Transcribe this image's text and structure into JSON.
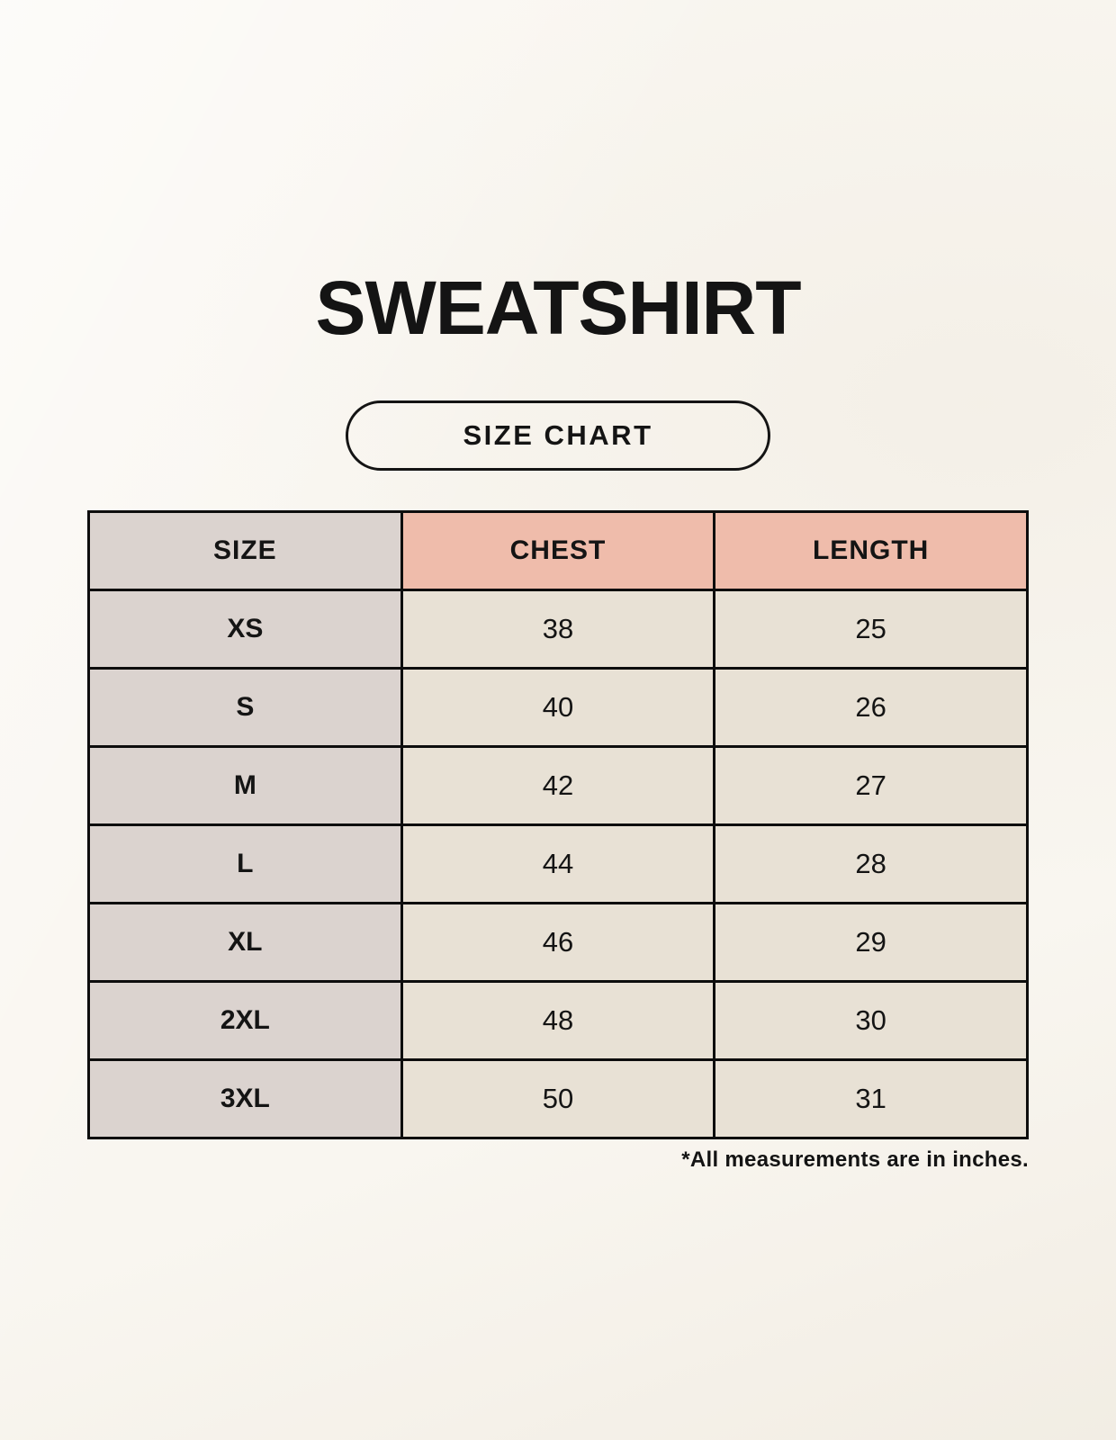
{
  "page": {
    "title": "SWEATSHIRT",
    "size_chart_badge": "SIZE CHART",
    "footnote": "*All measurements are in inches."
  },
  "chart_data": {
    "type": "table",
    "title": "SWEATSHIRT",
    "subtitle": "SIZE CHART",
    "columns": [
      "SIZE",
      "CHEST",
      "LENGTH"
    ],
    "rows": [
      {
        "size": "XS",
        "chest": 38,
        "length": 25
      },
      {
        "size": "S",
        "chest": 40,
        "length": 26
      },
      {
        "size": "M",
        "chest": 42,
        "length": 27
      },
      {
        "size": "L",
        "chest": 44,
        "length": 28
      },
      {
        "size": "XL",
        "chest": 46,
        "length": 29
      },
      {
        "size": "2XL",
        "chest": 48,
        "length": 30
      },
      {
        "size": "3XL",
        "chest": 50,
        "length": 31
      }
    ],
    "units": "inches",
    "footnote": "*All measurements are in inches."
  },
  "colors": {
    "background": "#f7f3eb",
    "header_accent": "#efbcab",
    "size_column": "#dbd3cf",
    "data_cell": "#e8e1d5",
    "border": "#0d0d0d",
    "text": "#141414"
  }
}
